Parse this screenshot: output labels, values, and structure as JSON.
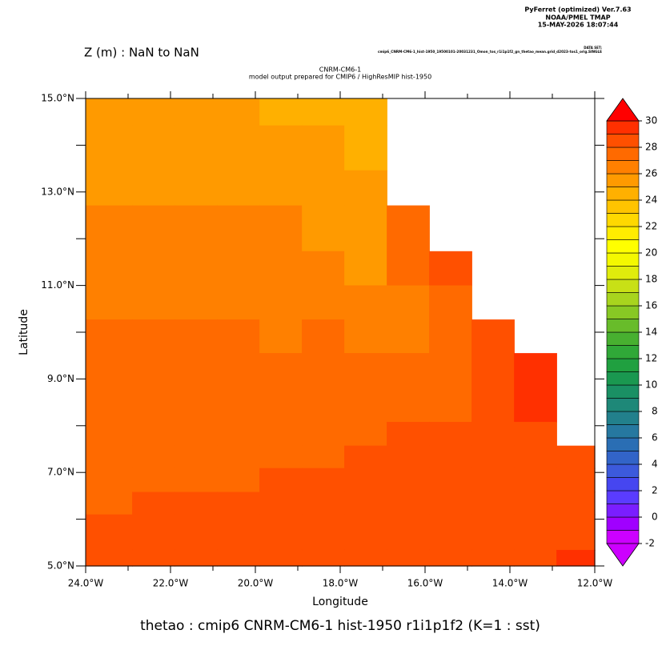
{
  "chart_data": {
    "type": "heatmap",
    "header": [
      "PyFerret (optimized) Ver.7.63",
      "NOAA/PMEL TMAP",
      "15-MAY-2026 18:07:44"
    ],
    "dataset_label": "DATA SET:",
    "dataset": "cmip6_CNRM-CM6-1_hist-1950_19500101-20031231_Omon_tos_r1i1p1f2_gn_thetao_mean.grid_d2023-tos1_orig.SINGLE",
    "axis_note": "Z (m) : NaN to NaN",
    "title": "CNRM-CM6-1",
    "subtitle": "model output prepared for CMIP6 / HighResMIP hist-1950",
    "xlabel": "Longitude",
    "ylabel": "Latitude",
    "footer": "thetao : cmip6 CNRM-CM6-1 hist-1950 r1i1p1f2   (K=1 : sst)",
    "xlim": [
      -24,
      -12
    ],
    "ylim": [
      5,
      15
    ],
    "xticks": [
      {
        "value": -24,
        "label": "24.0°W"
      },
      {
        "value": -22,
        "label": "22.0°W"
      },
      {
        "value": -20,
        "label": "20.0°W"
      },
      {
        "value": -18,
        "label": "18.0°W"
      },
      {
        "value": -16,
        "label": "16.0°W"
      },
      {
        "value": -14,
        "label": "14.0°W"
      },
      {
        "value": -12,
        "label": "12.0°W"
      }
    ],
    "xminor": [
      -23,
      -21,
      -19,
      -17,
      -15,
      -13
    ],
    "yticks": [
      {
        "value": 5,
        "label": "5.0°N"
      },
      {
        "value": 7,
        "label": "7.0°N"
      },
      {
        "value": 9,
        "label": "9.0°N"
      },
      {
        "value": 11,
        "label": "11.0°N"
      },
      {
        "value": 13,
        "label": "13.0°N"
      },
      {
        "value": 15,
        "label": "15.0°N"
      }
    ],
    "yminor": [
      6,
      8,
      10,
      12,
      14
    ],
    "x_edges": [
      -24,
      -22.9,
      -21.9,
      -20.9,
      -19.9,
      -18.9,
      -17.9,
      -16.9,
      -15.9,
      -14.9,
      -13.9,
      -12.9,
      -12
    ],
    "y_edges": [
      15,
      14.42,
      13.46,
      12.71,
      11.73,
      11.0,
      10.27,
      9.55,
      8.08,
      7.57,
      7.09,
      6.58,
      6.1,
      5.34,
      5
    ],
    "values": [
      [
        25.5,
        25.5,
        25.5,
        25.5,
        24.5,
        24.5,
        24.5,
        null,
        null,
        null,
        null,
        null
      ],
      [
        25.5,
        25.5,
        25.5,
        25.5,
        25.5,
        25.5,
        24.5,
        null,
        null,
        null,
        null,
        null
      ],
      [
        25.5,
        25.5,
        25.5,
        25.5,
        25.5,
        25.5,
        25.5,
        null,
        null,
        null,
        null,
        null
      ],
      [
        26.5,
        26.5,
        26.5,
        26.5,
        26.5,
        25.5,
        25.5,
        27.5,
        null,
        null,
        null,
        null
      ],
      [
        26.5,
        26.5,
        26.5,
        26.5,
        26.5,
        26.5,
        25.5,
        27.5,
        28.5,
        null,
        null,
        null
      ],
      [
        26.5,
        26.5,
        26.5,
        26.5,
        26.5,
        26.5,
        26.5,
        26.5,
        27.5,
        null,
        null,
        null
      ],
      [
        27.5,
        27.5,
        27.5,
        27.5,
        26.5,
        27.5,
        26.5,
        26.5,
        27.5,
        28.5,
        null,
        null
      ],
      [
        27.5,
        27.5,
        27.5,
        27.5,
        27.5,
        27.5,
        27.5,
        27.5,
        27.5,
        28.5,
        29.5,
        null
      ],
      [
        27.5,
        27.5,
        27.5,
        27.5,
        27.5,
        27.5,
        27.5,
        28.5,
        28.5,
        28.5,
        28.5,
        null
      ],
      [
        27.5,
        27.5,
        27.5,
        27.5,
        27.5,
        27.5,
        28.5,
        28.5,
        28.5,
        28.5,
        28.5,
        28.5
      ],
      [
        27.5,
        27.5,
        27.5,
        27.5,
        28.5,
        28.5,
        28.5,
        28.5,
        28.5,
        28.5,
        28.5,
        28.5
      ],
      [
        27.5,
        28.5,
        28.5,
        28.5,
        28.5,
        28.5,
        28.5,
        28.5,
        28.5,
        28.5,
        28.5,
        28.5
      ],
      [
        28.5,
        28.5,
        28.5,
        28.5,
        28.5,
        28.5,
        28.5,
        28.5,
        28.5,
        28.5,
        28.5,
        28.5
      ],
      [
        28.5,
        28.5,
        28.5,
        28.5,
        28.5,
        28.5,
        28.5,
        28.5,
        28.5,
        28.5,
        28.5,
        29.5
      ]
    ],
    "colorbar": {
      "levels": [
        -2,
        -1,
        0,
        1,
        2,
        3,
        4,
        5,
        6,
        7,
        8,
        9,
        10,
        11,
        12,
        13,
        14,
        15,
        16,
        17,
        18,
        19,
        20,
        21,
        22,
        23,
        24,
        25,
        26,
        27,
        28,
        29,
        30
      ],
      "colors": [
        "#cc00ff",
        "#a000ff",
        "#7a1eff",
        "#5a3cff",
        "#4646f0",
        "#3c5adc",
        "#3264c8",
        "#2a6eb4",
        "#2678a0",
        "#22808c",
        "#1e8878",
        "#1a9064",
        "#1a9850",
        "#20a040",
        "#30a838",
        "#48b030",
        "#68bc2a",
        "#88c824",
        "#a8d41e",
        "#c8e016",
        "#e0ec0c",
        "#f4f800",
        "#ffff00",
        "#ffec00",
        "#ffd800",
        "#ffc400",
        "#ffb000",
        "#ff9a00",
        "#ff8000",
        "#ff6a00",
        "#ff5000",
        "#ff3000"
      ],
      "under_color": "#cc00ff",
      "over_color": "#ff0000",
      "label_every": 2
    }
  }
}
